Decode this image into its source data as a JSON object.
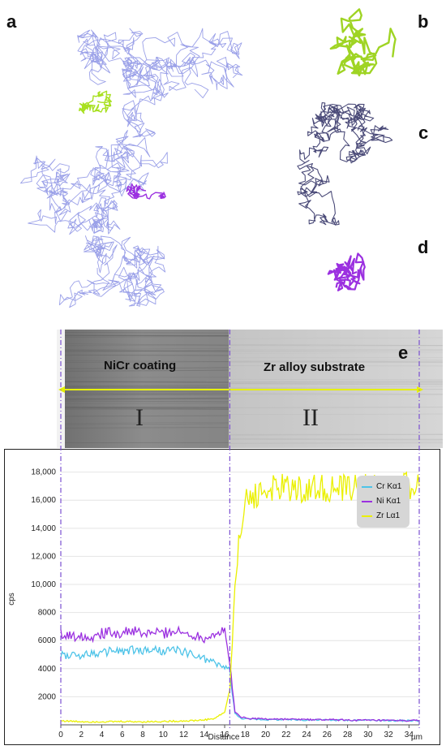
{
  "panels": {
    "a": "a",
    "b": "b",
    "c": "c",
    "d": "d",
    "e": "e"
  },
  "walk_colors": {
    "a": "#9aa0e8",
    "b": "#9fd424",
    "c": "#4a4a78",
    "d": "#9b30e0",
    "highlight_green": "#a8e020",
    "highlight_purple": "#9b30e0"
  },
  "sem": {
    "left_region": "NiCr coating",
    "right_region": "Zr alloy substrate",
    "roman_left": "I",
    "roman_right": "II",
    "line_color": "#e6f000",
    "boundary_color": "#7a4fd0"
  },
  "chart_data": {
    "type": "line",
    "xlabel": "Distance",
    "xunit": "µm",
    "ylabel": "cps",
    "xlim": [
      0,
      35
    ],
    "ylim": [
      0,
      18500
    ],
    "x_ticks": [
      0,
      2,
      4,
      6,
      8,
      10,
      12,
      14,
      16,
      18,
      20,
      22,
      24,
      26,
      28,
      30,
      32,
      34
    ],
    "y_ticks": [
      2000,
      4000,
      6000,
      8000,
      10000,
      12000,
      14000,
      16000,
      18000
    ],
    "y_tick_labels": [
      "2000",
      "4000",
      "6000",
      "8000",
      "10,000",
      "12,000",
      "14,000",
      "16,000",
      "18,000"
    ],
    "boundaries_um": [
      0,
      16.5,
      35
    ],
    "x": [
      0,
      1,
      2,
      3,
      4,
      5,
      6,
      7,
      8,
      9,
      10,
      11,
      12,
      13,
      14,
      15,
      16,
      16.5,
      17,
      17.5,
      18,
      19,
      20,
      21,
      22,
      23,
      24,
      25,
      26,
      27,
      28,
      29,
      30,
      31,
      32,
      33,
      34,
      35
    ],
    "series": [
      {
        "name": "Cr Kα1",
        "color": "#4dc3e8",
        "values": [
          5000,
          4900,
          5000,
          5100,
          5050,
          5300,
          5200,
          5300,
          5250,
          5350,
          5200,
          5300,
          5250,
          4900,
          4700,
          4400,
          4100,
          3800,
          800,
          500,
          420,
          400,
          380,
          370,
          360,
          360,
          350,
          350,
          340,
          340,
          330,
          330,
          320,
          320,
          310,
          300,
          300,
          300
        ]
      },
      {
        "name": "Ni Kα1",
        "color": "#9b30e0",
        "values": [
          6500,
          6300,
          6400,
          6300,
          6500,
          6600,
          6500,
          6700,
          6400,
          6600,
          6500,
          6700,
          6500,
          6400,
          6200,
          6500,
          6600,
          4500,
          900,
          600,
          500,
          450,
          420,
          410,
          400,
          390,
          380,
          370,
          360,
          350,
          340,
          330,
          320,
          310,
          300,
          300,
          300,
          300
        ]
      },
      {
        "name": "Zr Lα1",
        "color": "#eaf000",
        "values": [
          300,
          250,
          230,
          220,
          230,
          220,
          240,
          230,
          220,
          230,
          240,
          260,
          280,
          300,
          350,
          450,
          900,
          2500,
          9500,
          14000,
          15800,
          16400,
          16700,
          16800,
          16900,
          16800,
          16700,
          16900,
          16800,
          16700,
          16900,
          16800,
          17000,
          16900,
          16800,
          16900,
          17000,
          17000
        ]
      }
    ]
  }
}
